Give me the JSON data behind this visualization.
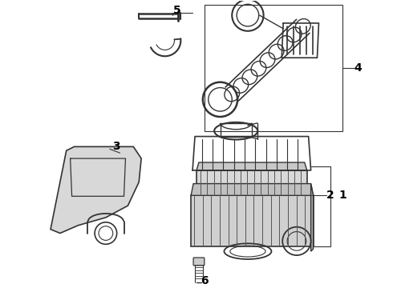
{
  "background_color": "#ffffff",
  "line_color": "#333333",
  "label_color": "#000000",
  "figsize": [
    4.9,
    3.6
  ],
  "dpi": 100
}
